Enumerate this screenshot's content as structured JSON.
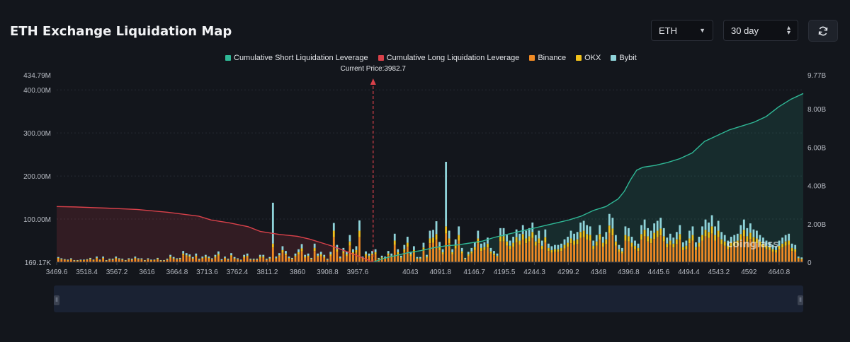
{
  "header": {
    "title": "ETH Exchange Liquidation Map",
    "asset_select": "ETH",
    "range_select": "30 day"
  },
  "icons": {
    "refresh": "refresh-icon",
    "asset_caret": "chevron-down-icon",
    "range_caret": "up-down-icon"
  },
  "colors": {
    "background": "#13161c",
    "short_line": "#2fb896",
    "long_line": "#d9414a",
    "binance": "#f08a24",
    "okx": "#f2c21b",
    "bybit": "#8fd3d9",
    "current_price": "#d9414a"
  },
  "watermark": "coinglass",
  "chart_data": {
    "type": "bar",
    "title": "ETH Exchange Liquidation Map",
    "current_price_label": "Current Price:3982.7",
    "current_price": 3982.7,
    "legend": [
      {
        "name": "Cumulative Short Liquidation Leverage",
        "color": "#2fb896"
      },
      {
        "name": "Cumulative Long Liquidation Leverage",
        "color": "#d9414a"
      },
      {
        "name": "Binance",
        "color": "#f08a24"
      },
      {
        "name": "OKX",
        "color": "#f2c21b"
      },
      {
        "name": "Bybit",
        "color": "#8fd3d9"
      }
    ],
    "x_ticks": [
      "3469.6",
      "3518.4",
      "3567.2",
      "3616",
      "3664.8",
      "3713.6",
      "3762.4",
      "3811.2",
      "3860",
      "3908.8",
      "3957.6",
      "4043",
      "4091.8",
      "4146.7",
      "4195.5",
      "4244.3",
      "4299.2",
      "4348",
      "4396.8",
      "4445.6",
      "4494.4",
      "4543.2",
      "4592",
      "4640.8"
    ],
    "x_range": [
      3469.6,
      4680
    ],
    "y_left_ticks": [
      "434.79M",
      "400.00M",
      "300.00M",
      "200.00M",
      "100.00M",
      "169.17K"
    ],
    "y_left_range": [
      0,
      434.79
    ],
    "y_right_ticks": [
      "9.77B",
      "8.00B",
      "6.00B",
      "4.00B",
      "2.00B",
      "0"
    ],
    "y_right_range": [
      0,
      9.77
    ],
    "stacked_series": [
      {
        "name": "Binance",
        "color": "#f08a24",
        "values": [
          8,
          6,
          5,
          4,
          6,
          3,
          3,
          4,
          4,
          5,
          6,
          4,
          8,
          4,
          8,
          3,
          5,
          5,
          8,
          6,
          5,
          3,
          6,
          5,
          8,
          6,
          6,
          3,
          6,
          4,
          4,
          6,
          3,
          3,
          5,
          10,
          7,
          6,
          6,
          16,
          13,
          11,
          7,
          12,
          5,
          8,
          10,
          8,
          6,
          10,
          15,
          4,
          8,
          5,
          13,
          7,
          6,
          4,
          10,
          12,
          5,
          5,
          5,
          10,
          10,
          5,
          7,
          34,
          8,
          13,
          22,
          16,
          8,
          6,
          12,
          18,
          25,
          10,
          12,
          6,
          26,
          12,
          14,
          10,
          5,
          14,
          58,
          24,
          8,
          20,
          14,
          38,
          18,
          22,
          58,
          8,
          15,
          12,
          16,
          18,
          6,
          9,
          8,
          16,
          12,
          40,
          18,
          9,
          24,
          36,
          14,
          22,
          7,
          7,
          27,
          10,
          44,
          45,
          52,
          28,
          18,
          66,
          44,
          18,
          32,
          50,
          20,
          6,
          14,
          20,
          28,
          44,
          26,
          28,
          34,
          20,
          16,
          12,
          48,
          48,
          38,
          30,
          36,
          46,
          40,
          52,
          44,
          48,
          56,
          38,
          44,
          30,
          46,
          26,
          22,
          24,
          24,
          26,
          32,
          36,
          44,
          40,
          42,
          56,
          58,
          52,
          50,
          30,
          38,
          52,
          36,
          42,
          68,
          62,
          38,
          24,
          20,
          50,
          48,
          36,
          30,
          26,
          52,
          60,
          48,
          44,
          54,
          58,
          62,
          48,
          34,
          40,
          34,
          42,
          52,
          28,
          30,
          44,
          50,
          28,
          36,
          50,
          60,
          56,
          66,
          50,
          58,
          42,
          38,
          30,
          36,
          38,
          40,
          52,
          60,
          48,
          54,
          46,
          44,
          38,
          34,
          30,
          28,
          24,
          22,
          30,
          34,
          38,
          40,
          26,
          24,
          8,
          6
        ]
      },
      {
        "name": "OKX",
        "color": "#f2c21b",
        "values": [
          2,
          1,
          1,
          1,
          1,
          1,
          1,
          1,
          1,
          1,
          2,
          1,
          2,
          1,
          2,
          1,
          1,
          1,
          2,
          1,
          1,
          1,
          1,
          1,
          2,
          1,
          1,
          1,
          1,
          1,
          1,
          2,
          1,
          1,
          1,
          3,
          2,
          1,
          2,
          4,
          3,
          3,
          2,
          3,
          1,
          2,
          3,
          2,
          1,
          3,
          4,
          1,
          2,
          1,
          3,
          2,
          1,
          1,
          3,
          3,
          1,
          1,
          1,
          3,
          3,
          1,
          2,
          9,
          2,
          3,
          6,
          4,
          2,
          2,
          3,
          5,
          7,
          3,
          3,
          2,
          7,
          3,
          4,
          3,
          1,
          4,
          15,
          6,
          2,
          5,
          4,
          10,
          5,
          6,
          15,
          2,
          4,
          3,
          4,
          5,
          2,
          2,
          2,
          4,
          3,
          10,
          5,
          2,
          6,
          9,
          4,
          6,
          2,
          2,
          7,
          3,
          11,
          12,
          13,
          7,
          5,
          17,
          11,
          5,
          8,
          13,
          5,
          2,
          4,
          5,
          7,
          11,
          7,
          7,
          9,
          5,
          4,
          3,
          12,
          12,
          10,
          8,
          9,
          12,
          10,
          13,
          11,
          12,
          14,
          10,
          11,
          8,
          12,
          7,
          6,
          6,
          6,
          7,
          8,
          9,
          11,
          10,
          11,
          14,
          15,
          13,
          13,
          8,
          10,
          13,
          9,
          11,
          17,
          16,
          10,
          6,
          5,
          13,
          12,
          9,
          8,
          7,
          13,
          15,
          12,
          11,
          14,
          15,
          16,
          12,
          9,
          10,
          9,
          11,
          13,
          7,
          8,
          11,
          13,
          7,
          9,
          13,
          15,
          14,
          17,
          13,
          15,
          11,
          10,
          8,
          9,
          10,
          10,
          13,
          15,
          12,
          14,
          12,
          11,
          10,
          9,
          8,
          7,
          6,
          6,
          8,
          9,
          10,
          10,
          7,
          6,
          2,
          2
        ]
      },
      {
        "name": "Bybit",
        "color": "#8fd3d9",
        "values": [
          2,
          2,
          1,
          1,
          2,
          1,
          1,
          1,
          1,
          1,
          2,
          1,
          3,
          1,
          3,
          1,
          2,
          2,
          3,
          2,
          2,
          1,
          2,
          2,
          3,
          2,
          2,
          1,
          2,
          1,
          1,
          2,
          1,
          1,
          2,
          4,
          3,
          2,
          2,
          6,
          5,
          4,
          3,
          5,
          2,
          3,
          4,
          3,
          2,
          4,
          6,
          2,
          3,
          2,
          5,
          3,
          2,
          1,
          4,
          5,
          2,
          2,
          2,
          4,
          4,
          2,
          3,
          95,
          3,
          5,
          9,
          6,
          3,
          2,
          5,
          7,
          10,
          4,
          5,
          2,
          10,
          5,
          6,
          4,
          2,
          6,
          18,
          10,
          3,
          8,
          6,
          15,
          7,
          9,
          24,
          3,
          6,
          5,
          6,
          7,
          2,
          4,
          3,
          6,
          5,
          16,
          7,
          4,
          10,
          14,
          6,
          9,
          3,
          3,
          11,
          4,
          18,
          18,
          30,
          12,
          7,
          150,
          18,
          7,
          13,
          20,
          8,
          2,
          6,
          8,
          11,
          18,
          10,
          11,
          14,
          8,
          6,
          5,
          19,
          19,
          15,
          12,
          14,
          18,
          16,
          21,
          18,
          19,
          22,
          15,
          18,
          12,
          18,
          10,
          9,
          10,
          10,
          10,
          13,
          14,
          18,
          16,
          17,
          22,
          23,
          21,
          20,
          12,
          15,
          21,
          14,
          17,
          27,
          25,
          15,
          10,
          8,
          20,
          19,
          14,
          12,
          10,
          21,
          24,
          19,
          18,
          22,
          23,
          25,
          19,
          14,
          16,
          14,
          17,
          21,
          11,
          12,
          18,
          20,
          11,
          14,
          20,
          24,
          22,
          26,
          20,
          23,
          17,
          15,
          12,
          14,
          15,
          16,
          21,
          24,
          19,
          22,
          18,
          18,
          15,
          14,
          12,
          11,
          10,
          9,
          12,
          14,
          15,
          16,
          10,
          10,
          3,
          3
        ]
      }
    ],
    "short_cumulative_line": {
      "name": "Cumulative Short Liquidation Leverage",
      "x": [
        3982.7,
        4000,
        4020,
        4040,
        4060,
        4080,
        4100,
        4120,
        4140,
        4160,
        4180,
        4200,
        4220,
        4240,
        4260,
        4280,
        4300,
        4320,
        4340,
        4360,
        4380,
        4390,
        4400,
        4410,
        4420,
        4440,
        4460,
        4480,
        4500,
        4520,
        4540,
        4560,
        4580,
        4600,
        4620,
        4640,
        4660,
        4680
      ],
      "y": [
        0,
        0.2,
        0.35,
        0.5,
        0.6,
        0.75,
        0.85,
        0.9,
        1.0,
        1.1,
        1.3,
        1.45,
        1.6,
        1.75,
        1.9,
        2.05,
        2.2,
        2.4,
        2.7,
        2.9,
        3.3,
        3.7,
        4.3,
        4.8,
        4.95,
        5.05,
        5.2,
        5.4,
        5.7,
        6.3,
        6.6,
        6.9,
        7.1,
        7.3,
        7.6,
        8.1,
        8.5,
        8.8
      ]
    },
    "long_cumulative_line": {
      "name": "Cumulative Long Liquidation Leverage",
      "x": [
        3469.6,
        3500,
        3550,
        3600,
        3650,
        3700,
        3720,
        3750,
        3780,
        3800,
        3830,
        3860,
        3880,
        3900,
        3920,
        3940,
        3960,
        3982.7
      ],
      "y": [
        2.9,
        2.88,
        2.82,
        2.75,
        2.6,
        2.4,
        2.2,
        2.05,
        1.85,
        1.6,
        1.45,
        1.35,
        1.2,
        1.0,
        0.8,
        0.55,
        0.3,
        0
      ]
    }
  }
}
